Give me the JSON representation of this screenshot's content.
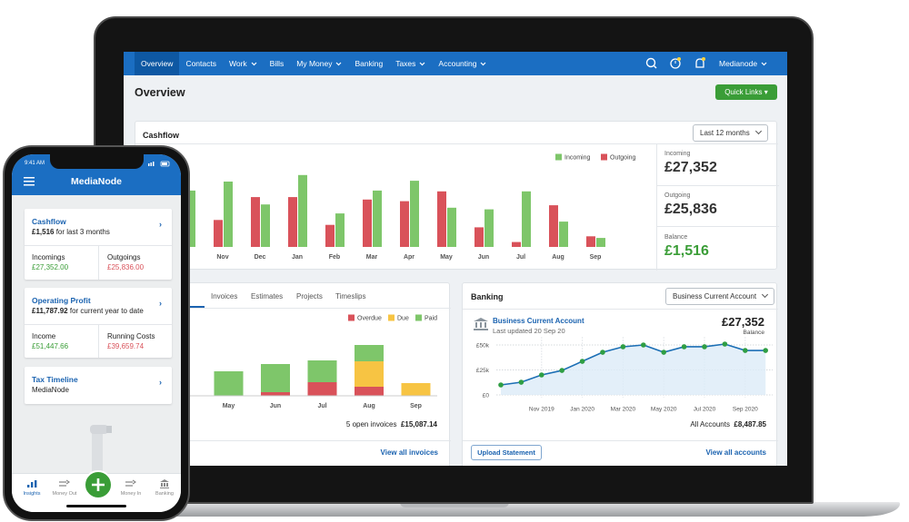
{
  "app": {
    "nav": [
      "Overview",
      "Contacts",
      "Work",
      "Bills",
      "My Money",
      "Banking",
      "Taxes",
      "Accounting"
    ],
    "user": "Medianode",
    "page_title": "Overview",
    "quick_links": "Quick Links"
  },
  "cashflow": {
    "title": "Cashflow",
    "period": "Last 12 months",
    "summary": [
      {
        "label": "Incoming",
        "value": "£27,352"
      },
      {
        "label": "Outgoing",
        "value": "£25,836"
      },
      {
        "label": "Balance",
        "value": "£1,516"
      }
    ]
  },
  "invoices": {
    "tabs": [
      "Invoices",
      "Estimates",
      "Projects",
      "Timeslips"
    ],
    "open_count": "5 open invoices",
    "open_total": "£15,087.14",
    "link": "View all invoices"
  },
  "banking": {
    "title": "Banking",
    "account_select": "Business Current Account",
    "account_name": "Business Current Account",
    "last_updated": "Last updated 20 Sep 20",
    "balance": "£27,352",
    "balance_label": "Balance",
    "all_accounts": "All Accounts",
    "all_total": "£8,487.85",
    "upload": "Upload Statement",
    "link": "View all accounts"
  },
  "chart_data": [
    {
      "type": "bar",
      "categories": [
        null,
        "Nov",
        "Dec",
        "Jan",
        "Feb",
        "Mar",
        "Apr",
        "May",
        "Jun",
        "Jul",
        "Aug",
        "Sep"
      ],
      "series": [
        {
          "name": "Incoming",
          "color": "#7ec66a",
          "values": [
            69,
            80,
            52,
            88,
            41,
            69,
            81,
            48,
            46,
            68,
            31,
            11
          ]
        },
        {
          "name": "Outgoing",
          "color": "#d9525a",
          "values": [
            null,
            33,
            61,
            61,
            27,
            58,
            56,
            68,
            24,
            6,
            51,
            13
          ]
        }
      ],
      "ylim": [
        0,
        100
      ]
    },
    {
      "type": "stacked_bar",
      "categories": [
        null,
        "May",
        "Jun",
        "Jul",
        "Aug",
        "Sep"
      ],
      "series": [
        {
          "name": "Overdue",
          "color": "#d9525a",
          "values": [
            null,
            null,
            4,
            15,
            10,
            null
          ]
        },
        {
          "name": "Due",
          "color": "#f7c443",
          "values": [
            null,
            null,
            null,
            null,
            28,
            14
          ]
        },
        {
          "name": "Paid",
          "color": "#7ec66a",
          "values": [
            null,
            27,
            31,
            24,
            18,
            null
          ]
        }
      ],
      "ylim": [
        0,
        80
      ]
    },
    {
      "type": "area_line",
      "categories": [
        null,
        null,
        "Nov 2019",
        null,
        "Jan 2020",
        null,
        "Mar 2020",
        null,
        "May 2020",
        null,
        "Jul 2020",
        null,
        "Sep 2020",
        null
      ],
      "values": [
        10000,
        12700,
        20000,
        24500,
        33600,
        42700,
        48200,
        50000,
        42700,
        48200,
        48200,
        50900,
        44500,
        44500
      ],
      "color": "#1c6fb5",
      "marker_color": "#2f9e44",
      "fill_color": "#dcebf8",
      "ylim": [
        0,
        58000
      ],
      "yticks": [
        {
          "value": 0,
          "label": "£0"
        },
        {
          "value": 25000,
          "label": "£25k"
        },
        {
          "value": 50000,
          "label": "£50k"
        }
      ],
      "grid": true
    }
  ],
  "phone": {
    "time": "9:41 AM",
    "title": "MediaNode",
    "cards": [
      {
        "title": "Cashflow",
        "amount": "£1,516",
        "note": "for last 3 months",
        "cells": [
          {
            "label": "Incomings",
            "value": "£27,352.00"
          },
          {
            "label": "Outgoings",
            "value": "£25,836.00"
          }
        ]
      },
      {
        "title": "Operating Profit",
        "amount": "£11,787.92",
        "note": "for current year to date",
        "cells": [
          {
            "label": "Income",
            "value": "£51,447.66"
          },
          {
            "label": "Running Costs",
            "value": "£39,659.74"
          }
        ]
      },
      {
        "title": "Tax Timeline",
        "note": "MediaNode"
      }
    ],
    "tabs": [
      "Insights",
      "Money Out",
      "Money In",
      "Banking"
    ]
  }
}
